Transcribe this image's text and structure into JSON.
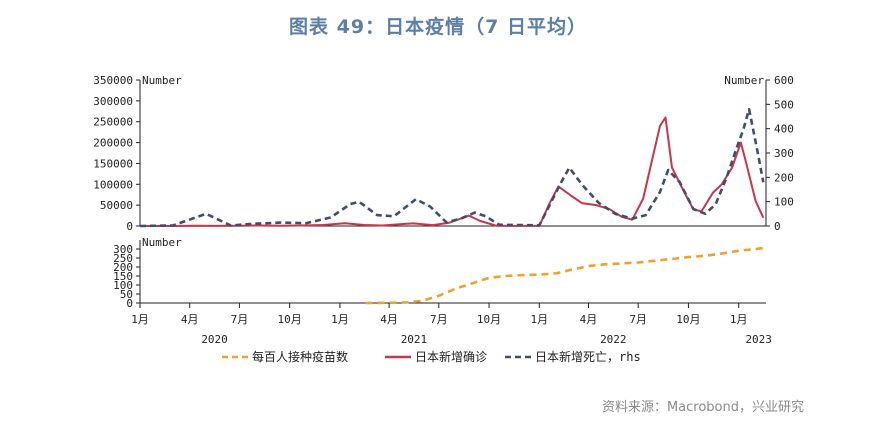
{
  "title": "图表 49：日本疫情（7 日平均）",
  "source": "资料来源：Macrobond，兴业研究",
  "colors": {
    "vaccine": "#f0a12a",
    "cases": "#c9354a",
    "deaths": "#3f4e6c",
    "axis": "#222222"
  },
  "chart_data": [
    {
      "type": "line",
      "panel": "top",
      "ylabel_left": "Number",
      "ylabel_right": "Number",
      "ylim_left": [
        0,
        350000
      ],
      "ylim_right": [
        0,
        600
      ],
      "yticks_left": [
        "0",
        "50000",
        "100000",
        "150000",
        "200000",
        "250000",
        "300000",
        "350000"
      ],
      "yticks_right": [
        "0",
        "100",
        "200",
        "300",
        "400",
        "500",
        "600"
      ],
      "series": [
        {
          "name": "日本新增确诊",
          "axis": "left",
          "style": "solid",
          "x": [
            "2020-01-01",
            "2020-03-01",
            "2020-04-10",
            "2020-05-20",
            "2020-07-01",
            "2020-08-05",
            "2020-09-15",
            "2020-11-01",
            "2020-12-01",
            "2021-01-10",
            "2021-02-15",
            "2021-03-20",
            "2021-04-20",
            "2021-05-15",
            "2021-06-20",
            "2021-07-20",
            "2021-08-15",
            "2021-08-25",
            "2021-09-15",
            "2021-10-15",
            "2021-12-15",
            "2022-01-01",
            "2022-01-20",
            "2022-02-05",
            "2022-03-01",
            "2022-03-20",
            "2022-04-15",
            "2022-05-10",
            "2022-06-01",
            "2022-06-20",
            "2022-07-10",
            "2022-07-25",
            "2022-08-10",
            "2022-08-20",
            "2022-09-01",
            "2022-09-20",
            "2022-10-10",
            "2022-10-25",
            "2022-11-15",
            "2022-12-01",
            "2022-12-20",
            "2023-01-05",
            "2023-01-15",
            "2023-02-01",
            "2023-02-15"
          ],
          "values": [
            0,
            100,
            600,
            300,
            800,
            1200,
            700,
            1500,
            2500,
            6500,
            2500,
            1200,
            4200,
            6200,
            2200,
            8000,
            20000,
            25000,
            12000,
            400,
            200,
            300,
            55000,
            95000,
            72000,
            55000,
            50000,
            40000,
            22000,
            15000,
            65000,
            150000,
            240000,
            260000,
            140000,
            90000,
            40000,
            35000,
            80000,
            100000,
            140000,
            200000,
            150000,
            60000,
            20000
          ]
        },
        {
          "name": "日本新增死亡，rhs",
          "axis": "right",
          "style": "dashed",
          "x": [
            "2020-01-01",
            "2020-03-01",
            "2020-05-01",
            "2020-06-15",
            "2020-08-01",
            "2020-09-15",
            "2020-11-01",
            "2020-12-15",
            "2021-01-20",
            "2021-02-05",
            "2021-03-10",
            "2021-04-10",
            "2021-05-20",
            "2021-06-15",
            "2021-07-15",
            "2021-08-10",
            "2021-09-05",
            "2021-09-25",
            "2021-10-20",
            "2022-01-01",
            "2022-02-10",
            "2022-02-25",
            "2022-03-20",
            "2022-04-20",
            "2022-05-20",
            "2022-06-20",
            "2022-07-15",
            "2022-08-10",
            "2022-08-25",
            "2022-09-15",
            "2022-10-10",
            "2022-11-01",
            "2022-11-20",
            "2022-12-10",
            "2022-12-25",
            "2023-01-10",
            "2023-01-20",
            "2023-02-05",
            "2023-02-15"
          ],
          "values": [
            0,
            2,
            50,
            2,
            10,
            14,
            12,
            35,
            90,
            100,
            45,
            40,
            110,
            80,
            15,
            30,
            55,
            40,
            5,
            3,
            180,
            240,
            170,
            95,
            50,
            30,
            45,
            140,
            230,
            180,
            70,
            50,
            90,
            200,
            300,
            400,
            480,
            300,
            180
          ]
        }
      ]
    },
    {
      "type": "line",
      "panel": "bottom",
      "ylabel_left": "Number",
      "ylim": [
        0,
        350
      ],
      "yticks": [
        "0",
        "50",
        "100",
        "150",
        "200",
        "250",
        "300"
      ],
      "series": [
        {
          "name": "每百人接种疫苗数",
          "style": "dashed",
          "x": [
            "2021-02-17",
            "2021-04-01",
            "2021-05-01",
            "2021-06-01",
            "2021-07-01",
            "2021-08-01",
            "2021-09-01",
            "2021-10-01",
            "2021-11-01",
            "2021-12-01",
            "2022-01-01",
            "2022-02-01",
            "2022-03-01",
            "2022-04-01",
            "2022-05-01",
            "2022-06-01",
            "2022-07-01",
            "2022-08-01",
            "2022-09-01",
            "2022-10-01",
            "2022-11-01",
            "2022-12-01",
            "2023-01-01",
            "2023-02-01",
            "2023-02-15"
          ],
          "values": [
            0,
            1,
            3,
            12,
            40,
            80,
            110,
            140,
            150,
            155,
            158,
            165,
            185,
            205,
            215,
            220,
            225,
            235,
            245,
            255,
            262,
            275,
            290,
            300,
            305
          ]
        }
      ]
    }
  ],
  "x_axis": {
    "ticks": [
      "1月",
      "4月",
      "7月",
      "10月",
      "1月",
      "4月",
      "7月",
      "10月",
      "1月",
      "4月",
      "7月",
      "10月",
      "1月"
    ],
    "years": [
      "2020",
      "2021",
      "2022",
      "2023"
    ]
  },
  "legend": [
    {
      "label": "每百人接种疫苗数",
      "style": "dashed",
      "color": "#f0a12a"
    },
    {
      "label": "日本新增确诊",
      "style": "solid",
      "color": "#c9354a"
    },
    {
      "label": "日本新增死亡，rhs",
      "style": "dashed",
      "color": "#3f4e6c"
    }
  ]
}
